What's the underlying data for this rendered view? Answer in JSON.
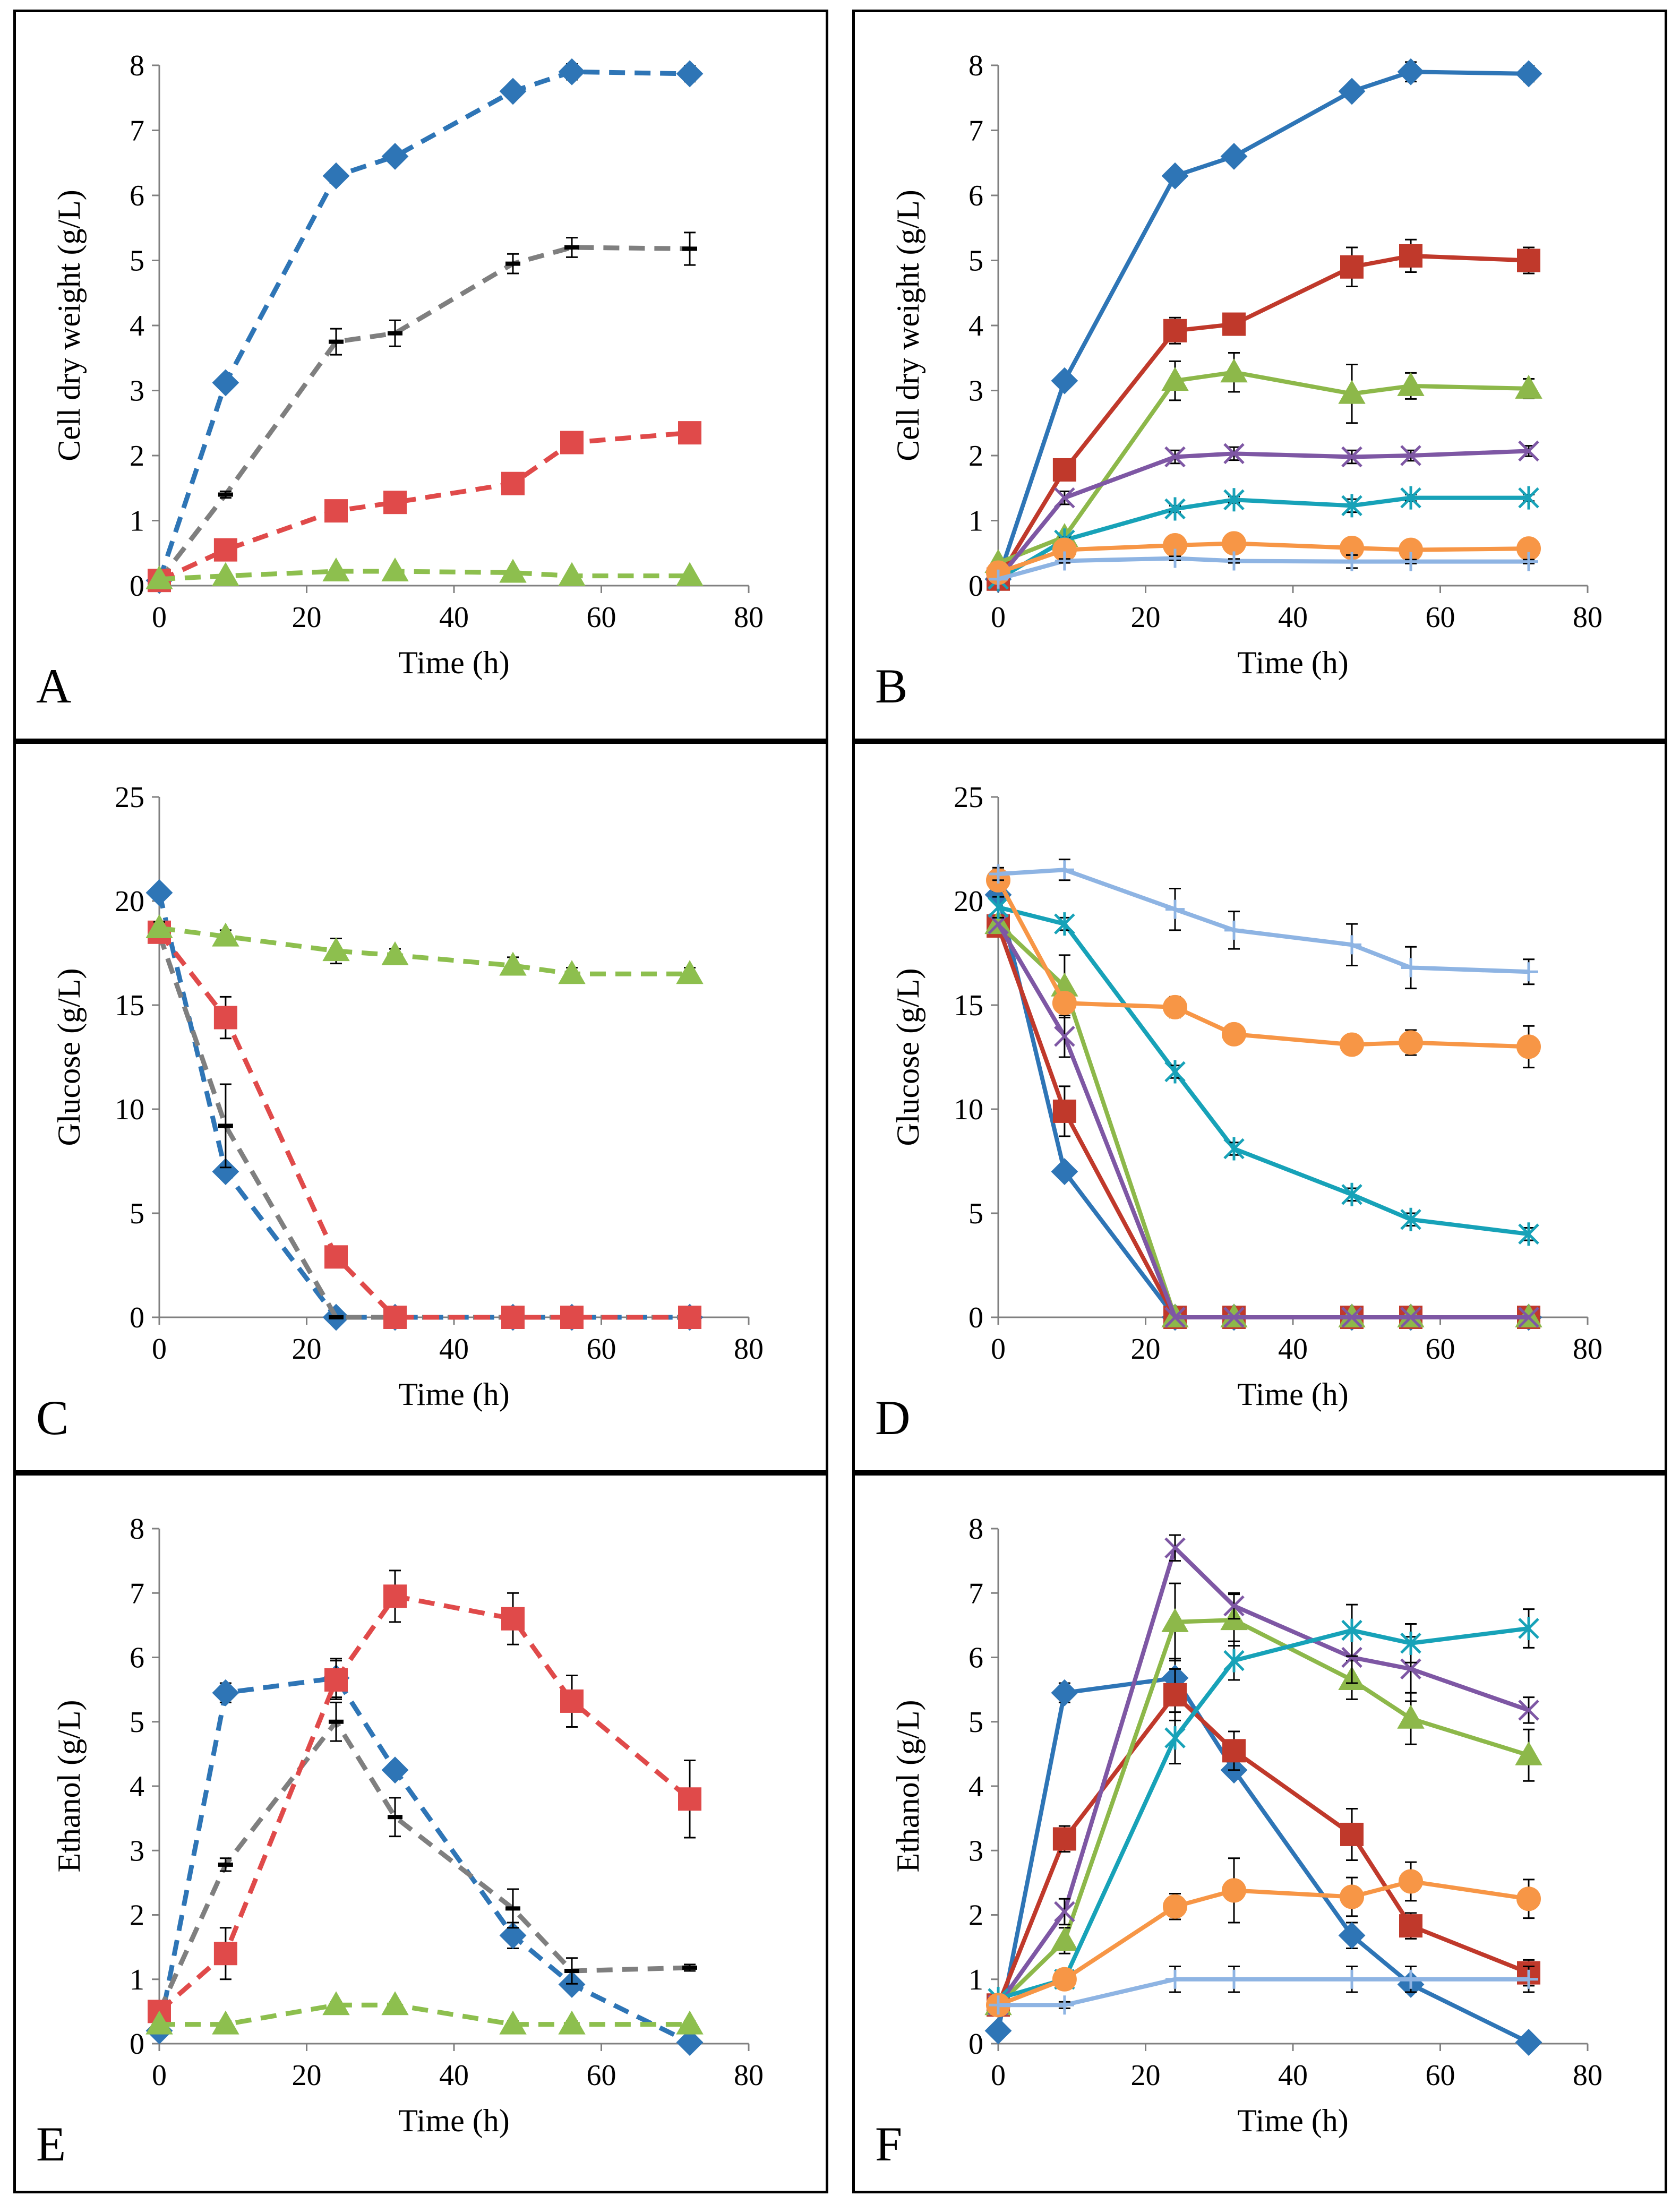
{
  "chart_data": [
    {
      "panel": "A",
      "type": "line",
      "line_style": "dashed",
      "xlabel": "Time (h)",
      "ylabel": "Cell dry weight (g/L)",
      "xlim": [
        0,
        80
      ],
      "ylim": [
        0,
        8
      ],
      "xticks": [
        0,
        20,
        40,
        60,
        80
      ],
      "yticks": [
        0,
        1,
        2,
        3,
        4,
        5,
        6,
        7,
        8
      ],
      "x": [
        0,
        9,
        24,
        32,
        48,
        56,
        72
      ],
      "series": [
        {
          "name": "series-1",
          "color": "#2E75B6",
          "marker": "diamond",
          "values": [
            0.08,
            3.12,
            6.3,
            6.6,
            7.6,
            7.9,
            7.87
          ],
          "errors": [
            0,
            0.08,
            0.1,
            0.1,
            0.1,
            0.12,
            0.12
          ]
        },
        {
          "name": "series-2",
          "color": "#7F7F7F",
          "marker": "dash",
          "values": [
            0.08,
            1.4,
            3.75,
            3.88,
            4.95,
            5.2,
            5.18
          ],
          "errors": [
            0,
            0.05,
            0.2,
            0.2,
            0.15,
            0.15,
            0.25
          ]
        },
        {
          "name": "series-3",
          "color": "#E04A4A",
          "marker": "square",
          "values": [
            0.08,
            0.55,
            1.15,
            1.28,
            1.57,
            2.2,
            2.35
          ],
          "errors": [
            0,
            0.05,
            0.1,
            0.15,
            0.05,
            0.05,
            0.05
          ]
        },
        {
          "name": "series-4",
          "color": "#8DBF4E",
          "marker": "triangle",
          "values": [
            0.1,
            0.15,
            0.22,
            0.22,
            0.2,
            0.15,
            0.15
          ],
          "errors": [
            0,
            0.02,
            0.02,
            0.02,
            0.02,
            0.02,
            0.02
          ]
        }
      ]
    },
    {
      "panel": "B",
      "type": "line",
      "line_style": "solid",
      "xlabel": "Time (h)",
      "ylabel": "Cell dry weight (g/L)",
      "xlim": [
        0,
        80
      ],
      "ylim": [
        0,
        8
      ],
      "xticks": [
        0,
        20,
        40,
        60,
        80
      ],
      "yticks": [
        0,
        1,
        2,
        3,
        4,
        5,
        6,
        7,
        8
      ],
      "x": [
        0,
        9,
        24,
        32,
        48,
        56,
        72
      ],
      "series": [
        {
          "name": "series-1",
          "color": "#2E75B6",
          "marker": "diamond",
          "values": [
            0.1,
            3.15,
            6.3,
            6.6,
            7.6,
            7.9,
            7.87
          ],
          "errors": [
            0,
            0.05,
            0.1,
            0.1,
            0.1,
            0.15,
            0.12
          ]
        },
        {
          "name": "series-2",
          "color": "#C0392B",
          "marker": "square",
          "values": [
            0.1,
            1.78,
            3.92,
            4.02,
            4.9,
            5.07,
            5.0
          ],
          "errors": [
            0,
            0.1,
            0.2,
            0.15,
            0.3,
            0.25,
            0.2
          ]
        },
        {
          "name": "series-3",
          "color": "#8DB84A",
          "marker": "triangle",
          "values": [
            0.35,
            0.75,
            3.15,
            3.28,
            2.95,
            3.07,
            3.03
          ],
          "errors": [
            0,
            0.05,
            0.3,
            0.3,
            0.45,
            0.2,
            0.15
          ]
        },
        {
          "name": "series-4",
          "color": "#7E57A4",
          "marker": "x",
          "values": [
            0.1,
            1.35,
            1.98,
            2.03,
            1.98,
            2.0,
            2.07
          ],
          "errors": [
            0,
            0.1,
            0.1,
            0.1,
            0.1,
            0.08,
            0.08
          ]
        },
        {
          "name": "series-5",
          "color": "#17A2B8",
          "marker": "asterisk",
          "values": [
            0.1,
            0.7,
            1.18,
            1.32,
            1.23,
            1.35,
            1.35
          ],
          "errors": [
            0,
            0.05,
            0.05,
            0.05,
            0.1,
            0.05,
            0.05
          ]
        },
        {
          "name": "series-6",
          "color": "#F79646",
          "marker": "circle",
          "values": [
            0.2,
            0.55,
            0.62,
            0.65,
            0.58,
            0.55,
            0.57
          ],
          "errors": [
            0,
            0.05,
            0.05,
            0.05,
            0.05,
            0.05,
            0.05
          ]
        },
        {
          "name": "series-7",
          "color": "#8EB4E3",
          "marker": "plus",
          "values": [
            0.1,
            0.38,
            0.42,
            0.38,
            0.37,
            0.37,
            0.37
          ],
          "errors": [
            0,
            0.03,
            0.03,
            0.03,
            0.1,
            0.03,
            0.03
          ]
        }
      ]
    },
    {
      "panel": "C",
      "type": "line",
      "line_style": "dashed",
      "xlabel": "Time (h)",
      "ylabel": "Glucose (g/L)",
      "xlim": [
        0,
        80
      ],
      "ylim": [
        0,
        25
      ],
      "xticks": [
        0,
        20,
        40,
        60,
        80
      ],
      "yticks": [
        0,
        5,
        10,
        15,
        20,
        25
      ],
      "x": [
        0,
        9,
        24,
        32,
        48,
        56,
        72
      ],
      "series": [
        {
          "name": "series-1",
          "color": "#2E75B6",
          "marker": "diamond",
          "values": [
            20.4,
            7.0,
            0,
            0,
            0,
            0,
            0
          ],
          "errors": [
            0,
            0.3,
            0,
            0,
            0,
            0,
            0
          ]
        },
        {
          "name": "series-2",
          "color": "#7F7F7F",
          "marker": "dash",
          "values": [
            18.4,
            9.2,
            0,
            0,
            0,
            0,
            0
          ],
          "errors": [
            0,
            2.0,
            0,
            0,
            0,
            0,
            0
          ]
        },
        {
          "name": "series-3",
          "color": "#E04A4A",
          "marker": "square",
          "values": [
            18.5,
            14.4,
            2.9,
            0,
            0,
            0,
            0
          ],
          "errors": [
            0,
            1.0,
            0.3,
            0,
            0,
            0,
            0
          ]
        },
        {
          "name": "series-4",
          "color": "#8DBF4E",
          "marker": "triangle",
          "values": [
            18.7,
            18.3,
            17.6,
            17.4,
            16.9,
            16.5,
            16.5
          ],
          "errors": [
            0.3,
            0.3,
            0.6,
            0.3,
            0.4,
            0.3,
            0.3
          ]
        }
      ]
    },
    {
      "panel": "D",
      "type": "line",
      "line_style": "solid",
      "xlabel": "Time (h)",
      "ylabel": "Glucose (g/L)",
      "xlim": [
        0,
        80
      ],
      "ylim": [
        0,
        25
      ],
      "xticks": [
        0,
        20,
        40,
        60,
        80
      ],
      "yticks": [
        0,
        5,
        10,
        15,
        20,
        25
      ],
      "x": [
        0,
        9,
        24,
        32,
        48,
        56,
        72
      ],
      "series": [
        {
          "name": "series-1",
          "color": "#2E75B6",
          "marker": "diamond",
          "values": [
            20.3,
            7.0,
            0,
            0,
            0,
            0,
            0
          ],
          "errors": [
            0,
            0.3,
            0,
            0,
            0,
            0,
            0
          ]
        },
        {
          "name": "series-2",
          "color": "#C0392B",
          "marker": "square",
          "values": [
            18.8,
            9.9,
            0,
            0,
            0,
            0,
            0
          ],
          "errors": [
            0,
            1.2,
            0,
            0,
            0,
            0,
            0
          ]
        },
        {
          "name": "series-3",
          "color": "#8DB84A",
          "marker": "triangle",
          "values": [
            18.9,
            15.9,
            0,
            0,
            0,
            0,
            0
          ],
          "errors": [
            0,
            1.5,
            0,
            0,
            0,
            0,
            0
          ]
        },
        {
          "name": "series-4",
          "color": "#7E57A4",
          "marker": "x",
          "values": [
            18.9,
            13.5,
            0,
            0,
            0,
            0,
            0
          ],
          "errors": [
            0,
            1.0,
            0,
            0,
            0,
            0,
            0
          ]
        },
        {
          "name": "series-5",
          "color": "#17A2B8",
          "marker": "asterisk",
          "values": [
            19.7,
            18.9,
            11.8,
            8.1,
            5.9,
            4.7,
            4.0
          ],
          "errors": [
            0.5,
            0.3,
            0.3,
            0.3,
            0.3,
            0.3,
            0.3
          ]
        },
        {
          "name": "series-6",
          "color": "#F79646",
          "marker": "circle",
          "values": [
            21.0,
            15.1,
            14.9,
            13.6,
            13.1,
            13.2,
            13.0
          ],
          "errors": [
            0.5,
            0.3,
            0.5,
            0.4,
            0.4,
            0.6,
            1.0
          ]
        },
        {
          "name": "series-7",
          "color": "#8EB4E3",
          "marker": "plus",
          "values": [
            21.3,
            21.5,
            19.6,
            18.6,
            17.9,
            16.8,
            16.6
          ],
          "errors": [
            0.3,
            0.5,
            1.0,
            0.9,
            1.0,
            1.0,
            0.6
          ]
        }
      ]
    },
    {
      "panel": "E",
      "type": "line",
      "line_style": "dashed",
      "xlabel": "Time (h)",
      "ylabel": "Ethanol (g/L)",
      "xlim": [
        0,
        80
      ],
      "ylim": [
        0,
        8
      ],
      "xticks": [
        0,
        20,
        40,
        60,
        80
      ],
      "yticks": [
        0,
        1,
        2,
        3,
        4,
        5,
        6,
        7,
        8
      ],
      "x": [
        0,
        9,
        24,
        32,
        48,
        56,
        72
      ],
      "series": [
        {
          "name": "series-1",
          "color": "#2E75B6",
          "marker": "diamond",
          "values": [
            0.2,
            5.45,
            5.68,
            4.25,
            1.68,
            0.92,
            0.02
          ],
          "errors": [
            0,
            0.15,
            0.3,
            0.1,
            0.2,
            0.1,
            0
          ]
        },
        {
          "name": "series-2",
          "color": "#7F7F7F",
          "marker": "dash",
          "values": [
            0.5,
            2.78,
            5.0,
            3.52,
            2.1,
            1.13,
            1.18
          ],
          "errors": [
            0,
            0.1,
            0.3,
            0.3,
            0.3,
            0.2,
            0.05
          ]
        },
        {
          "name": "series-3",
          "color": "#E04A4A",
          "marker": "square",
          "values": [
            0.5,
            1.4,
            5.65,
            6.95,
            6.6,
            5.32,
            3.8
          ],
          "errors": [
            0,
            0.4,
            0.3,
            0.4,
            0.4,
            0.4,
            0.6
          ]
        },
        {
          "name": "series-4",
          "color": "#8DBF4E",
          "marker": "triangle",
          "values": [
            0.3,
            0.3,
            0.6,
            0.6,
            0.3,
            0.3,
            0.3
          ],
          "errors": [
            0,
            0.05,
            0.05,
            0.05,
            0.05,
            0.05,
            0.05
          ]
        }
      ]
    },
    {
      "panel": "F",
      "type": "line",
      "line_style": "solid",
      "xlabel": "Time (h)",
      "ylabel": "Ethanol (g/L)",
      "xlim": [
        0,
        80
      ],
      "ylim": [
        0,
        8
      ],
      "xticks": [
        0,
        20,
        40,
        60,
        80
      ],
      "yticks": [
        0,
        1,
        2,
        3,
        4,
        5,
        6,
        7,
        8
      ],
      "x": [
        0,
        9,
        24,
        32,
        48,
        56,
        72
      ],
      "series": [
        {
          "name": "series-1",
          "color": "#2E75B6",
          "marker": "diamond",
          "values": [
            0.2,
            5.45,
            5.68,
            4.25,
            1.68,
            0.92,
            0.02
          ],
          "errors": [
            0,
            0.15,
            0.3,
            0.1,
            0.2,
            0.1,
            0
          ]
        },
        {
          "name": "series-2",
          "color": "#C0392B",
          "marker": "square",
          "values": [
            0.6,
            3.18,
            5.42,
            4.55,
            3.25,
            1.83,
            1.1
          ],
          "errors": [
            0,
            0.2,
            0.4,
            0.3,
            0.4,
            0.2,
            0.2
          ]
        },
        {
          "name": "series-3",
          "color": "#8DB84A",
          "marker": "triangle",
          "values": [
            0.6,
            1.6,
            6.55,
            6.58,
            5.65,
            5.05,
            4.48
          ],
          "errors": [
            0,
            0.2,
            0.6,
            0.4,
            0.3,
            0.4,
            0.4
          ]
        },
        {
          "name": "series-4",
          "color": "#7E57A4",
          "marker": "x",
          "values": [
            0.6,
            2.05,
            7.7,
            6.8,
            6.0,
            5.82,
            5.18
          ],
          "errors": [
            0,
            0.2,
            0.2,
            0.2,
            0.4,
            0.5,
            0.2
          ]
        },
        {
          "name": "series-5",
          "color": "#17A2B8",
          "marker": "asterisk",
          "values": [
            0.7,
            1.0,
            4.75,
            5.95,
            6.42,
            6.22,
            6.45
          ],
          "errors": [
            0,
            0.1,
            0.4,
            0.3,
            0.4,
            0.3,
            0.3
          ]
        },
        {
          "name": "series-6",
          "color": "#F79646",
          "marker": "circle",
          "values": [
            0.6,
            1.0,
            2.13,
            2.38,
            2.28,
            2.52,
            2.25
          ],
          "errors": [
            0,
            0.1,
            0.2,
            0.5,
            0.3,
            0.3,
            0.3
          ]
        },
        {
          "name": "series-7",
          "color": "#8EB4E3",
          "marker": "plus",
          "values": [
            0.6,
            0.6,
            1.0,
            1.0,
            1.0,
            1.0,
            1.0
          ],
          "errors": [
            0,
            0.05,
            0.2,
            0.2,
            0.2,
            0.2,
            0.2
          ]
        }
      ]
    }
  ]
}
